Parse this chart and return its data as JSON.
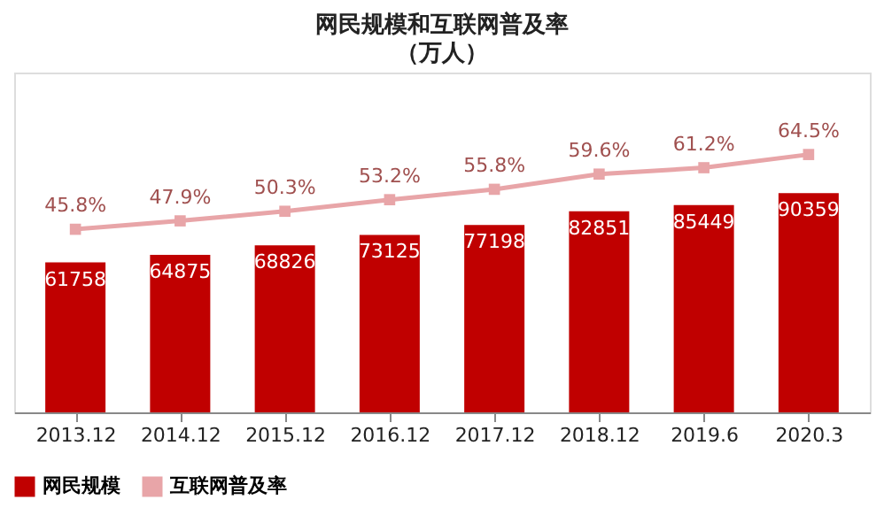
{
  "chart_data": {
    "type": "bar",
    "title": "网民规模和互联网普及率",
    "subtitle": "（万人）",
    "categories": [
      "2013.12",
      "2014.12",
      "2015.12",
      "2016.12",
      "2017.12",
      "2018.12",
      "2019.6",
      "2020.3"
    ],
    "series": [
      {
        "name": "网民规模",
        "color": "#c00000",
        "values": [
          61758,
          64875,
          68826,
          73125,
          77198,
          82851,
          85449,
          90359
        ],
        "value_labels": [
          "61758",
          "64875",
          "68826",
          "73125",
          "77198",
          "82851",
          "85449",
          "90359"
        ]
      },
      {
        "name": "互联网普及率",
        "type": "line",
        "axis": "y2",
        "color": "#e8a5a8",
        "values": [
          45.8,
          47.9,
          50.3,
          53.2,
          55.8,
          59.6,
          61.2,
          64.5
        ],
        "value_labels": [
          "45.8%",
          "47.9%",
          "50.3%",
          "53.2%",
          "55.8%",
          "59.6%",
          "61.2%",
          "64.5%"
        ]
      }
    ],
    "ylim": [
      0,
      140000
    ],
    "y2lim": [
      0,
      85
    ],
    "legend": "bottom",
    "grid": false,
    "marker": "square",
    "line_style": "solid"
  }
}
